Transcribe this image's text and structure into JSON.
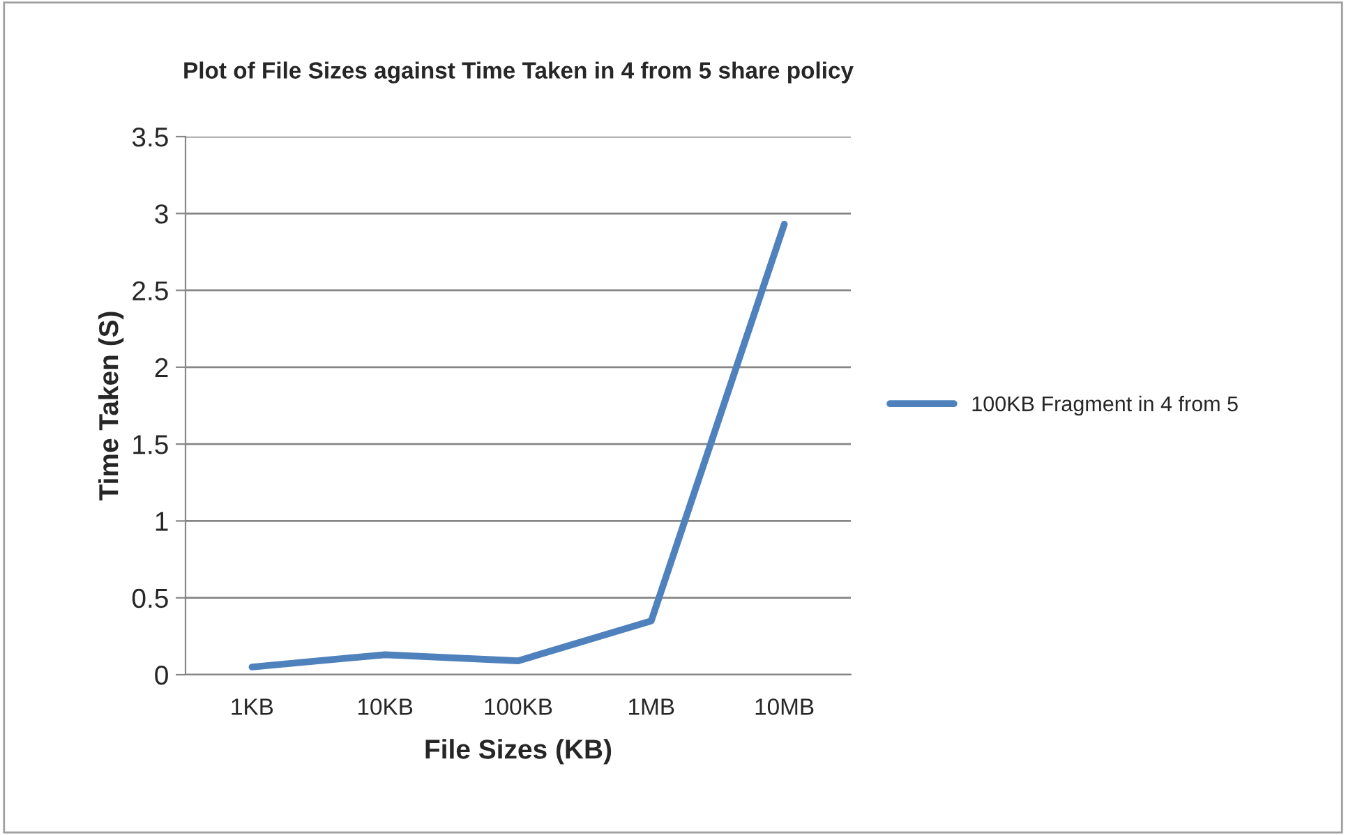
{
  "chart_data": {
    "type": "line",
    "title": "Plot of File Sizes against Time Taken in 4 from 5 share policy",
    "xlabel": "File Sizes (KB)",
    "ylabel": "Time Taken (S)",
    "categories": [
      "1KB",
      "10KB",
      "100KB",
      "1MB",
      "10MB"
    ],
    "series": [
      {
        "name": "100KB Fragment in 4 from 5",
        "color": "#4f81bd",
        "values": [
          0.05,
          0.13,
          0.09,
          0.35,
          2.93
        ]
      }
    ],
    "ylim": [
      0,
      3.5
    ],
    "yticks": [
      0,
      0.5,
      1,
      1.5,
      2,
      2.5,
      3,
      3.5
    ],
    "grid": "y",
    "legend": "right",
    "marker": "none",
    "line_style": "solid"
  }
}
